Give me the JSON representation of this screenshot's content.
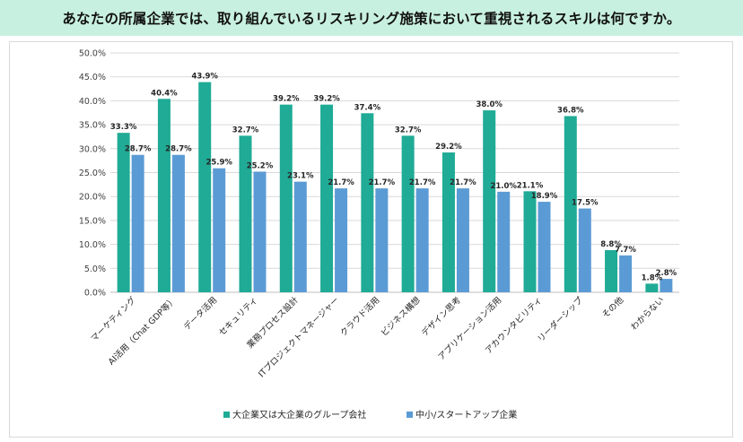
{
  "chart_data": {
    "type": "bar",
    "title": "あなたの所属企業では、取り組んでいるリスキリング施策において重視されるスキルは何ですか。",
    "categories": [
      "マーケティング",
      "AI活用（Chat GDP等）",
      "データ活用",
      "セキュリティ",
      "業務プロセス設計",
      "ITプロジェクトマネージャー",
      "クラウド活用",
      "ビジネス構想",
      "デザイン思考",
      "アプリケーション活用",
      "アカウンタビリティ",
      "リーダーシップ",
      "その他",
      "わからない"
    ],
    "series": [
      {
        "name": "大企業又は大企業のグループ会社",
        "color": "#1fab95",
        "values": [
          33.3,
          40.4,
          43.9,
          32.7,
          39.2,
          39.2,
          37.4,
          32.7,
          29.2,
          38.0,
          21.1,
          36.8,
          8.8,
          1.8
        ]
      },
      {
        "name": "中小/スタートアップ企業",
        "color": "#5b9bd5",
        "values": [
          28.7,
          28.7,
          25.9,
          25.2,
          23.1,
          21.7,
          21.7,
          21.7,
          21.7,
          21.0,
          18.9,
          17.5,
          7.7,
          2.8
        ]
      }
    ],
    "ylim": [
      0,
      50
    ],
    "yticks": [
      "0.0%",
      "5.0%",
      "10.0%",
      "15.0%",
      "20.0%",
      "25.0%",
      "30.0%",
      "35.0%",
      "40.0%",
      "45.0%",
      "50.0%"
    ],
    "ytick_values": [
      0,
      5,
      10,
      15,
      20,
      25,
      30,
      35,
      40,
      45,
      50
    ],
    "value_suffix": "%",
    "gridlines": true,
    "legend_position": "bottom-center"
  }
}
